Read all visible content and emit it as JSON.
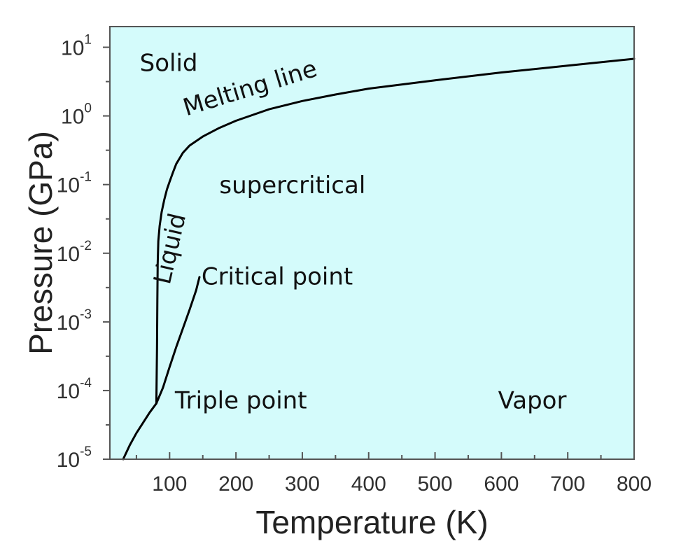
{
  "chart_data": {
    "type": "line",
    "title": "",
    "xlabel": "Temperature (K)",
    "ylabel": "Pressure (GPa)",
    "xlim": [
      10,
      800
    ],
    "ylim": [
      1e-05,
      20
    ],
    "y_scale": "log",
    "grid": false,
    "legend": "none",
    "x_ticks": [
      100,
      200,
      300,
      400,
      500,
      600,
      700,
      800
    ],
    "y_ticks": [
      {
        "value": 1e-05,
        "base": "10",
        "exp": "-5"
      },
      {
        "value": 0.0001,
        "base": "10",
        "exp": "-4"
      },
      {
        "value": 0.001,
        "base": "10",
        "exp": "-3"
      },
      {
        "value": 0.01,
        "base": "10",
        "exp": "-2"
      },
      {
        "value": 0.1,
        "base": "10",
        "exp": "-1"
      },
      {
        "value": 1,
        "base": "10",
        "exp": "0"
      },
      {
        "value": 10,
        "base": "10",
        "exp": "1"
      }
    ],
    "series": [
      {
        "x": [
          30,
          40,
          50,
          60,
          70,
          80,
          81,
          81.5,
          82,
          83,
          85,
          88,
          92,
          96,
          100,
          105,
          110,
          120,
          130,
          150,
          175,
          200,
          250,
          300,
          350,
          400,
          500,
          600,
          700,
          800
        ],
        "y": [
          1e-05,
          1.6e-05,
          2.4e-05,
          3.4e-05,
          4.8e-05,
          6.5e-05,
          0.0004,
          0.002,
          0.007,
          0.015,
          0.025,
          0.04,
          0.06,
          0.085,
          0.11,
          0.15,
          0.2,
          0.29,
          0.37,
          0.5,
          0.67,
          0.85,
          1.25,
          1.65,
          2.05,
          2.5,
          3.3,
          4.3,
          5.4,
          6.8
        ]
      },
      {
        "x": [
          80,
          90,
          100,
          110,
          120,
          130,
          140,
          145
        ],
        "y": [
          6.5e-05,
          0.00011,
          0.00022,
          0.00043,
          0.0008,
          0.0015,
          0.0029,
          0.0045
        ]
      }
    ],
    "annotations": [
      {
        "text": "Solid",
        "x": 55,
        "y": 4.5,
        "rotate": 0
      },
      {
        "text": "Melting line",
        "x": 125,
        "y": 1.0,
        "rotate": -17
      },
      {
        "text": "supercritical",
        "x": 175,
        "y": 0.075,
        "rotate": 0
      },
      {
        "text": "Liquid",
        "x": 100,
        "y": 0.0034,
        "rotate": -77
      },
      {
        "text": "Critical point",
        "x": 148,
        "y": 0.0035,
        "rotate": 0
      },
      {
        "text": "Triple point",
        "x": 108,
        "y": 5.5e-05,
        "rotate": 0
      },
      {
        "text": "Vapor",
        "x": 595,
        "y": 5.5e-05,
        "rotate": 0
      }
    ],
    "colors": {
      "background": "#d4fbfb",
      "line": "#000000",
      "axis": "#555555",
      "text": "#111111"
    }
  }
}
